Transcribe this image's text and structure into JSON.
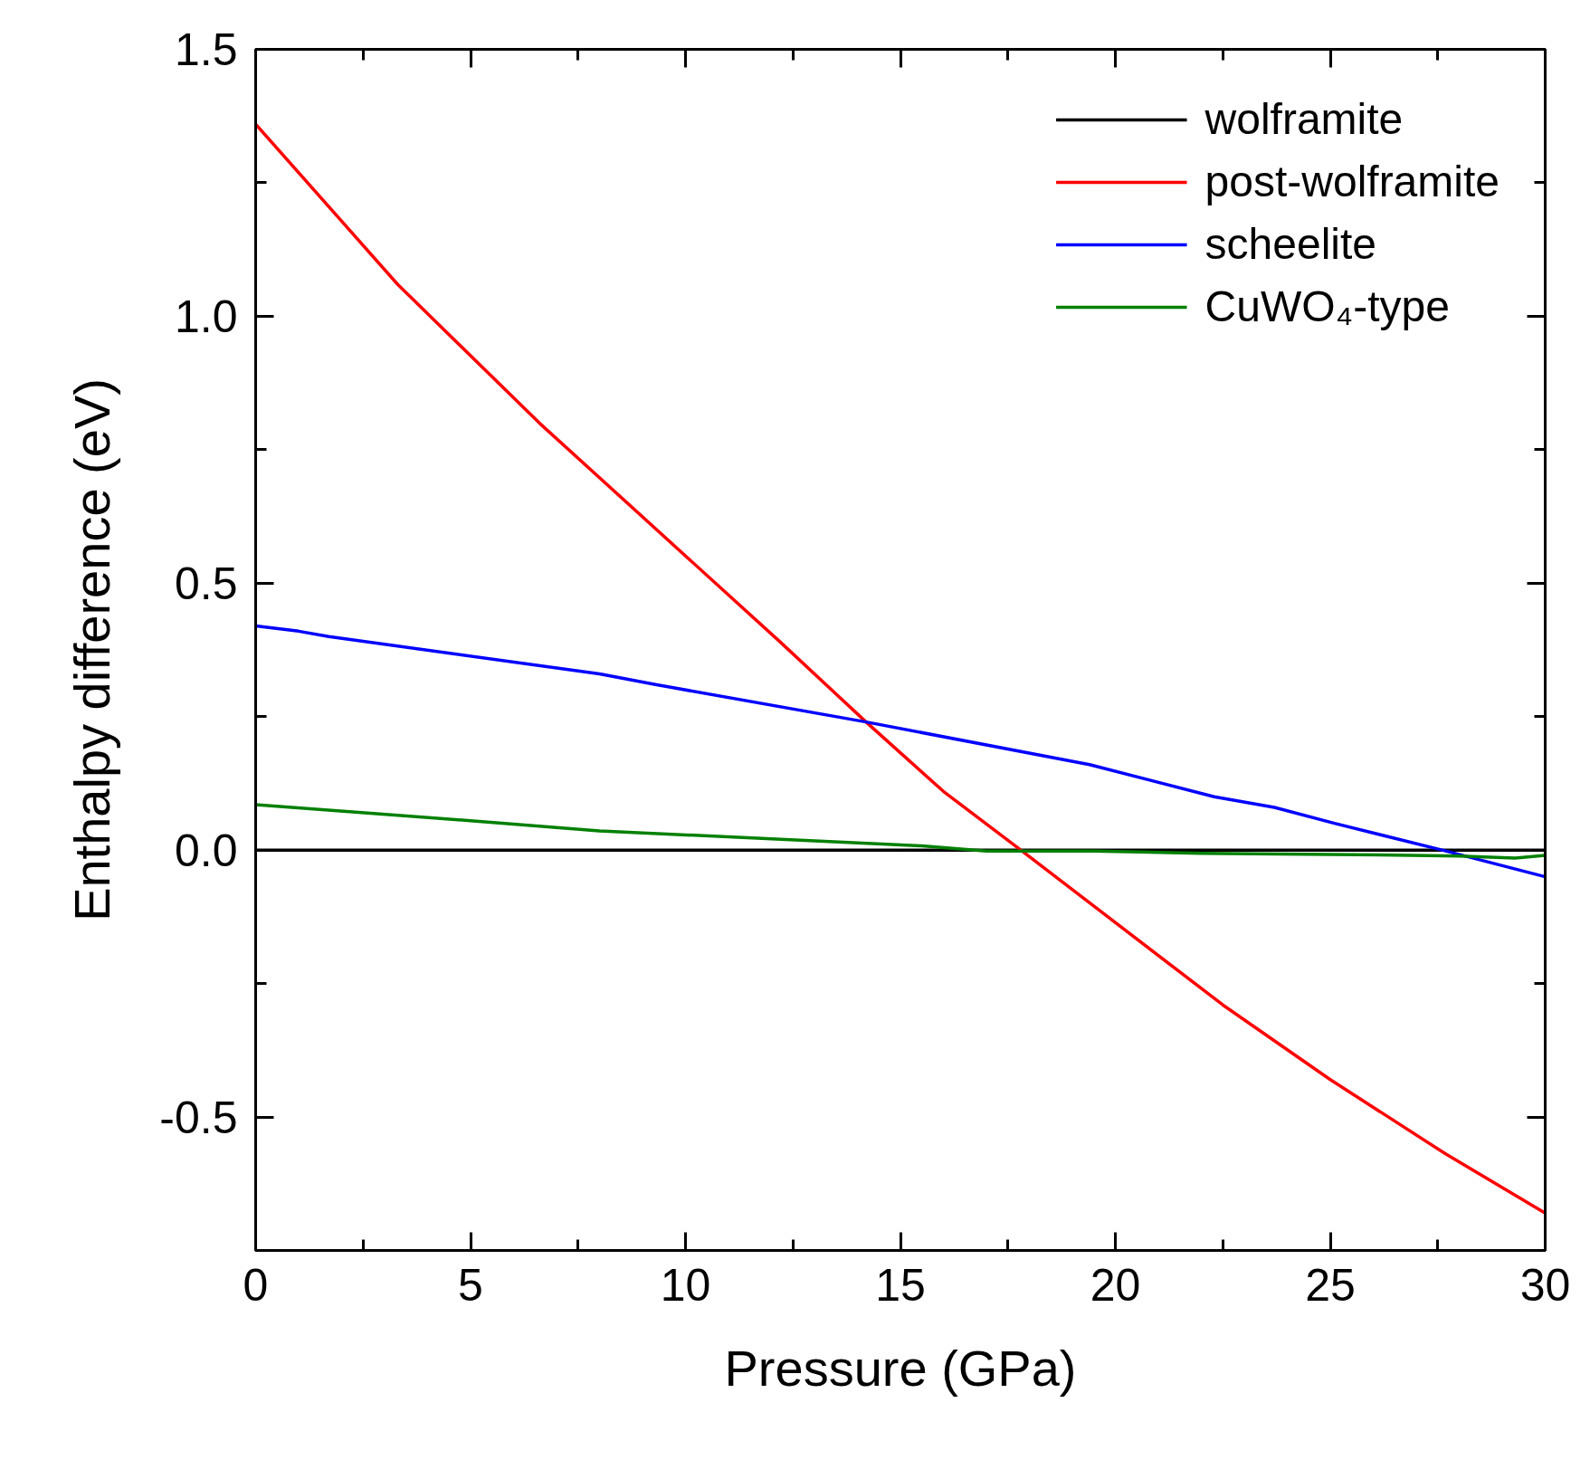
{
  "chart_data": {
    "type": "line",
    "xlabel": "Pressure (GPa)",
    "ylabel": "Enthalpy difference (eV)",
    "xlim": [
      0,
      30
    ],
    "ylim": [
      -0.75,
      1.5
    ],
    "xticks": [
      0,
      5,
      10,
      15,
      20,
      25,
      30
    ],
    "yticks": [
      -0.5,
      {
        "value": 0,
        "label": "0.0"
      },
      0.5,
      {
        "value": 1,
        "label": "1.0"
      },
      1.5
    ],
    "grid": false,
    "legend": "top right",
    "marker": "none",
    "line_style": "solid",
    "series": [
      {
        "name": "wolframite",
        "color": "#000000",
        "x": [
          0,
          30
        ],
        "values": [
          0,
          0
        ]
      },
      {
        "name": "post-wolframite",
        "color": "#ff0000",
        "x": [
          0,
          3.3,
          6.6,
          12.2,
          14.2,
          16,
          17.8,
          22.5,
          25,
          27.7,
          30
        ],
        "values": [
          1.36,
          1.06,
          0.8,
          0.39,
          0.24,
          0.11,
          0,
          -0.29,
          -0.43,
          -0.57,
          -0.68
        ]
      },
      {
        "name": "scheelite",
        "color": "#0000ff",
        "x": [
          0,
          1,
          1.7,
          8,
          9.3,
          14.2,
          19.4,
          22.3,
          23.7,
          25.1,
          27.6,
          30
        ],
        "values": [
          0.42,
          0.41,
          0.4,
          0.33,
          0.31,
          0.24,
          0.16,
          0.1,
          0.08,
          0.05,
          0,
          -0.05
        ]
      },
      {
        "name": "CuWO₄-type",
        "color": "#008000",
        "x": [
          0,
          5,
          8,
          12,
          15.5,
          17,
          19.5,
          22,
          25,
          28,
          29.3,
          30
        ],
        "values": [
          0.085,
          0.055,
          0.036,
          0.021,
          0.008,
          -0.002,
          -0.002,
          -0.006,
          -0.008,
          -0.011,
          -0.015,
          -0.01
        ]
      }
    ]
  }
}
